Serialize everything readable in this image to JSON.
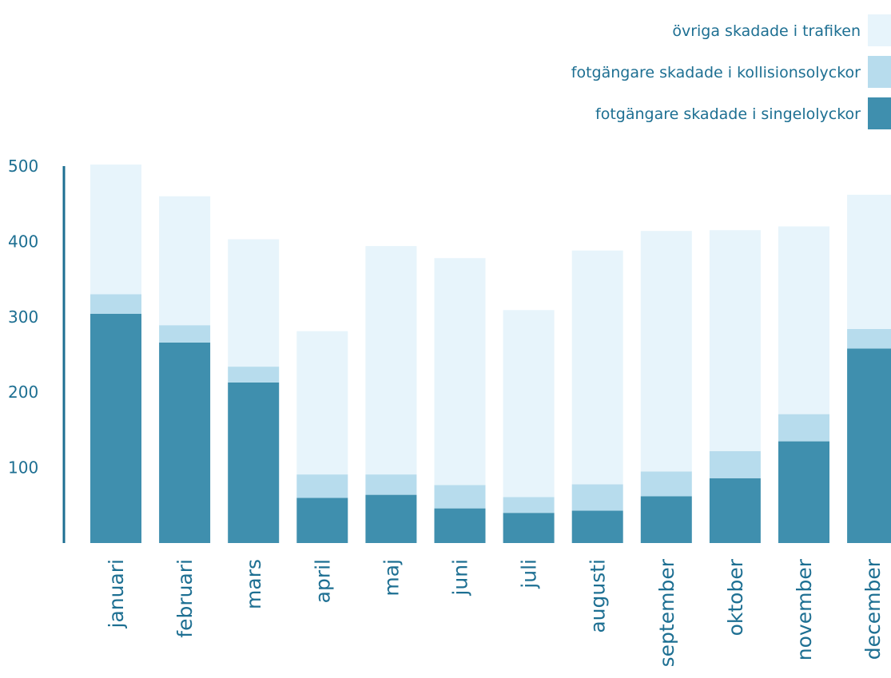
{
  "chart_data": {
    "type": "bar",
    "stacked": true,
    "categories": [
      "januari",
      "februari",
      "mars",
      "april",
      "maj",
      "juni",
      "juli",
      "augusti",
      "september",
      "oktober",
      "november",
      "december"
    ],
    "series": [
      {
        "name": "fotgängare skadade i singelolyckor",
        "color": "#3f8fae",
        "values": [
          304,
          266,
          213,
          60,
          64,
          46,
          40,
          43,
          62,
          86,
          135,
          258
        ]
      },
      {
        "name": "fotgängare skadade i kollisionsolyckor",
        "color": "#b7dced",
        "values": [
          26,
          23,
          21,
          31,
          27,
          31,
          21,
          35,
          33,
          36,
          36,
          26
        ]
      },
      {
        "name": "övriga skadade i trafiken",
        "color": "#e7f4fb",
        "values": [
          172,
          171,
          169,
          190,
          303,
          301,
          248,
          310,
          319,
          293,
          249,
          178
        ]
      }
    ],
    "yticks": [
      100,
      200,
      300,
      400,
      500
    ],
    "ylim": [
      0,
      500
    ],
    "grid": false,
    "legend_position": "top-right",
    "title": "",
    "xlabel": "",
    "ylabel": ""
  }
}
